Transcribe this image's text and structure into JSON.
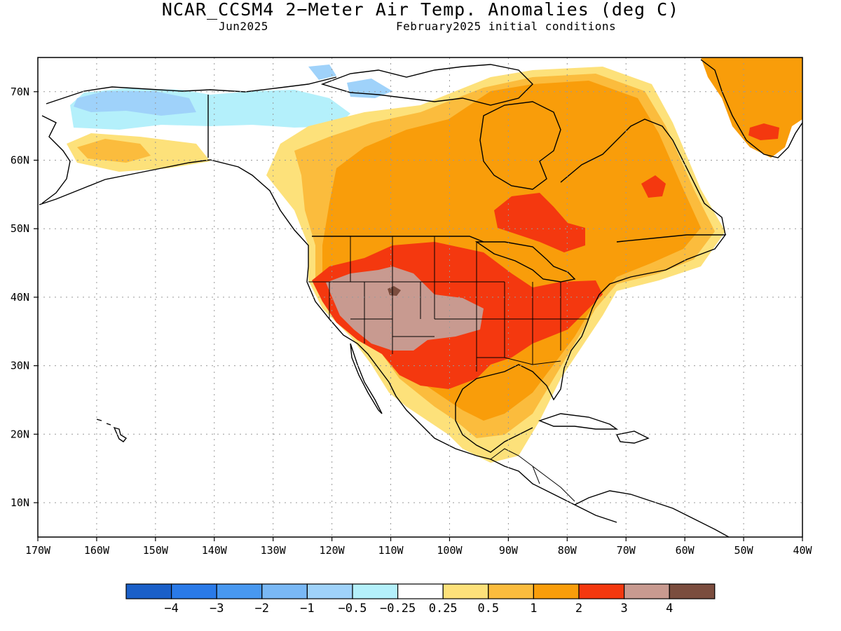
{
  "header": {
    "title": "NCAR_CCSM4 2−Meter Air Temp. Anomalies (deg C)",
    "valid_month": "Jun2025",
    "initial_conditions": "February2025 initial conditions"
  },
  "axes": {
    "lon_labels": [
      "170W",
      "160W",
      "150W",
      "140W",
      "130W",
      "120W",
      "110W",
      "100W",
      "90W",
      "80W",
      "70W",
      "60W",
      "50W",
      "40W"
    ],
    "lat_labels": [
      "10N",
      "20N",
      "30N",
      "40N",
      "50N",
      "60N",
      "70N"
    ]
  },
  "colorbar": {
    "colors": [
      "#1a5fc8",
      "#2a7ae8",
      "#4898f0",
      "#79b8f5",
      "#9fd2fa",
      "#b4f0fb",
      "#ffffff",
      "#fde17a",
      "#fbbc3d",
      "#f99d0a",
      "#f4380f",
      "#c89a90",
      "#7b4d3e"
    ],
    "labels": [
      "−4",
      "−3",
      "−2",
      "−1",
      "−0.5",
      "−0.25",
      "0.25",
      "0.5",
      "1",
      "2",
      "3",
      "4"
    ]
  },
  "anomaly_classes": {
    "cold_alaska": "#9fd2fa",
    "cool": "#b4f0fb",
    "slight_warm": "#fde17a",
    "warm_half": "#fbbc3d",
    "warm_one": "#f99d0a",
    "warm_two": "#f4380f",
    "warm_three": "#c89a90",
    "warm_four": "#7b4d3e"
  }
}
